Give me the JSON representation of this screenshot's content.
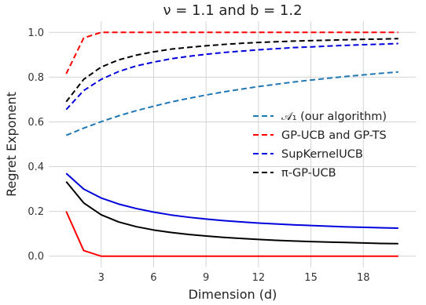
{
  "chart_data": {
    "type": "line",
    "title": "ν = 1.1 and b = 1.2",
    "xlabel": "Dimension (d)",
    "ylabel": "Regret Exponent",
    "xlim": [
      0,
      21
    ],
    "ylim": [
      -0.05,
      1.05
    ],
    "xticks": [
      3,
      6,
      9,
      12,
      15,
      18
    ],
    "yticks": [
      0.0,
      0.2,
      0.4,
      0.6,
      0.8,
      1.0
    ],
    "ytick_labels": [
      "0.0",
      "0.2",
      "0.4",
      "0.6",
      "0.8",
      "1.0"
    ],
    "grid": true,
    "legend_position": "center-right",
    "x": [
      1,
      2,
      3,
      4,
      5,
      6,
      7,
      8,
      9,
      10,
      11,
      12,
      13,
      14,
      15,
      16,
      17,
      18,
      19,
      20
    ],
    "series": [
      {
        "name": "𝒜₁ (our algorithm)",
        "color": "#1f77b4",
        "dash": true,
        "legend": true,
        "values": [
          0.54,
          0.572,
          0.601,
          0.627,
          0.65,
          0.67,
          0.689,
          0.705,
          0.72,
          0.734,
          0.746,
          0.758,
          0.768,
          0.778,
          0.787,
          0.795,
          0.803,
          0.81,
          0.817,
          0.823
        ]
      },
      {
        "name": "GP-UCB and GP-TS",
        "color": "#ff0000",
        "dash": true,
        "legend": true,
        "values": [
          0.815,
          0.975,
          1.0,
          1.0,
          1.0,
          1.0,
          1.0,
          1.0,
          1.0,
          1.0,
          1.0,
          1.0,
          1.0,
          1.0,
          1.0,
          1.0,
          1.0,
          1.0,
          1.0,
          1.0
        ]
      },
      {
        "name": "SupKernelUCB",
        "color": "#0000dd",
        "dash": true,
        "legend": true,
        "values": [
          0.655,
          0.74,
          0.79,
          0.825,
          0.85,
          0.867,
          0.882,
          0.893,
          0.902,
          0.91,
          0.916,
          0.922,
          0.927,
          0.932,
          0.935,
          0.939,
          0.942,
          0.945,
          0.947,
          0.95
        ]
      },
      {
        "name": "π-GP-UCB",
        "color": "#000000",
        "dash": true,
        "legend": true,
        "values": [
          0.69,
          0.79,
          0.845,
          0.877,
          0.898,
          0.913,
          0.925,
          0.933,
          0.94,
          0.946,
          0.951,
          0.955,
          0.958,
          0.961,
          0.963,
          0.965,
          0.967,
          0.969,
          0.97,
          0.972
        ]
      },
      {
        "name": "",
        "color": "#0000dd",
        "dash": false,
        "legend": false,
        "values": [
          0.37,
          0.3,
          0.26,
          0.233,
          0.213,
          0.197,
          0.184,
          0.174,
          0.166,
          0.159,
          0.153,
          0.148,
          0.144,
          0.14,
          0.137,
          0.134,
          0.131,
          0.129,
          0.127,
          0.125
        ]
      },
      {
        "name": "",
        "color": "#ff0000",
        "dash": false,
        "legend": false,
        "values": [
          0.2,
          0.025,
          0.0,
          0.0,
          0.0,
          0.0,
          0.0,
          0.0,
          0.0,
          0.0,
          0.0,
          0.0,
          0.0,
          0.0,
          0.0,
          0.0,
          0.0,
          0.0,
          0.0,
          0.0
        ]
      },
      {
        "name": "",
        "color": "#000000",
        "dash": false,
        "legend": false,
        "values": [
          0.333,
          0.238,
          0.185,
          0.153,
          0.132,
          0.117,
          0.106,
          0.097,
          0.09,
          0.084,
          0.079,
          0.075,
          0.071,
          0.068,
          0.065,
          0.063,
          0.061,
          0.059,
          0.057,
          0.056
        ]
      }
    ]
  }
}
